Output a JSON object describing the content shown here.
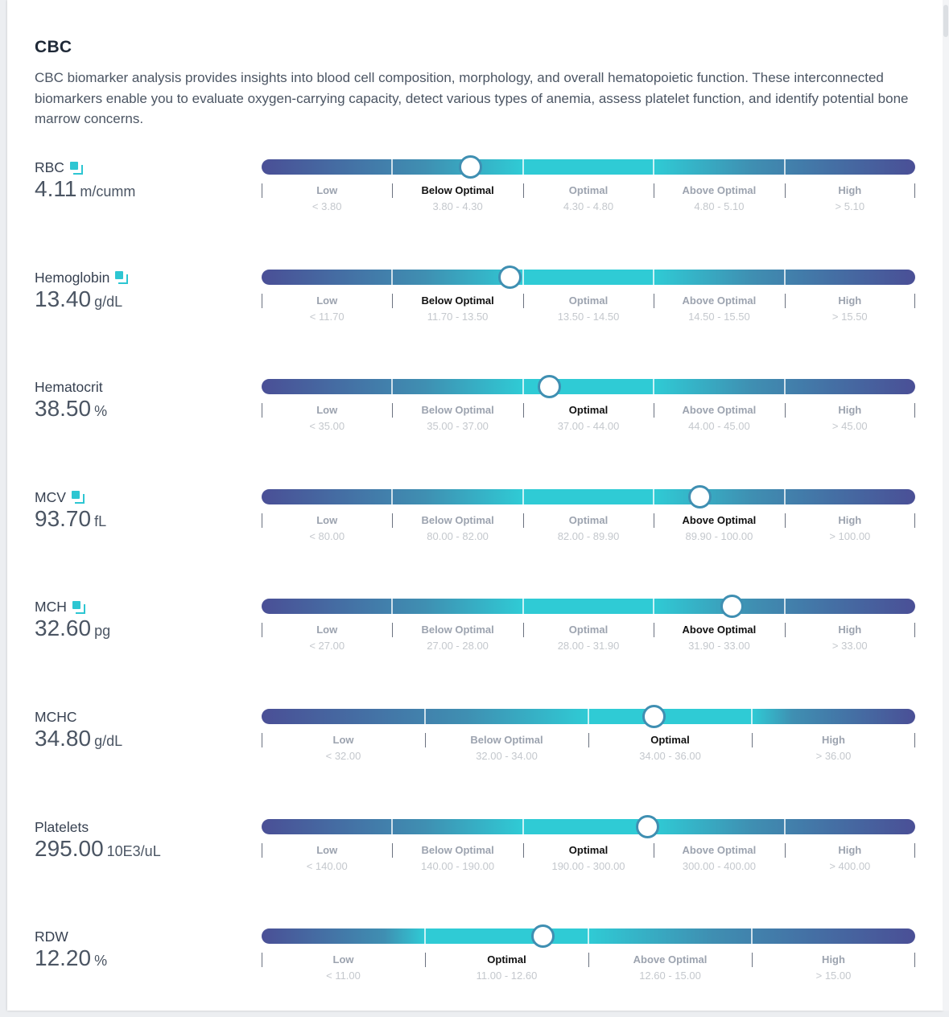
{
  "section": {
    "title": "CBC",
    "description": "CBC biomarker analysis provides insights into blood cell composition, morphology, and overall hematopoietic function. These interconnected biomarkers enable you to evaluate oxygen-carrying capacity, detect various types of anemia, assess platelet function, and identify potential bone marrow concerns."
  },
  "colors": {
    "dark": "#4a4f96",
    "mid": "#3f8fb2",
    "bright": "#2fcbd5",
    "marker_border": "#3f8fb2"
  },
  "biomarkers": [
    {
      "name": "RBC",
      "value": "4.11",
      "unit": "m/cumm",
      "has_icon": true,
      "position": 0.32,
      "active": 1,
      "segments": [
        {
          "label": "Low",
          "range": "< 3.80"
        },
        {
          "label": "Below Optimal",
          "range": "3.80 - 4.30"
        },
        {
          "label": "Optimal",
          "range": "4.30 - 4.80"
        },
        {
          "label": "Above Optimal",
          "range": "4.80 - 5.10"
        },
        {
          "label": "High",
          "range": "> 5.10"
        }
      ]
    },
    {
      "name": "Hemoglobin",
      "value": "13.40",
      "unit": "g/dL",
      "has_icon": true,
      "position": 0.38,
      "active": 1,
      "segments": [
        {
          "label": "Low",
          "range": "< 11.70"
        },
        {
          "label": "Below Optimal",
          "range": "11.70 - 13.50"
        },
        {
          "label": "Optimal",
          "range": "13.50 - 14.50"
        },
        {
          "label": "Above Optimal",
          "range": "14.50 - 15.50"
        },
        {
          "label": "High",
          "range": "> 15.50"
        }
      ]
    },
    {
      "name": "Hematocrit",
      "value": "38.50",
      "unit": "%",
      "has_icon": false,
      "position": 0.44,
      "active": 2,
      "segments": [
        {
          "label": "Low",
          "range": "< 35.00"
        },
        {
          "label": "Below Optimal",
          "range": "35.00 - 37.00"
        },
        {
          "label": "Optimal",
          "range": "37.00 - 44.00"
        },
        {
          "label": "Above Optimal",
          "range": "44.00 - 45.00"
        },
        {
          "label": "High",
          "range": "> 45.00"
        }
      ]
    },
    {
      "name": "MCV",
      "value": "93.70",
      "unit": "fL",
      "has_icon": true,
      "position": 0.67,
      "active": 3,
      "segments": [
        {
          "label": "Low",
          "range": "< 80.00"
        },
        {
          "label": "Below Optimal",
          "range": "80.00 - 82.00"
        },
        {
          "label": "Optimal",
          "range": "82.00 - 89.90"
        },
        {
          "label": "Above Optimal",
          "range": "89.90 - 100.00"
        },
        {
          "label": "High",
          "range": "> 100.00"
        }
      ]
    },
    {
      "name": "MCH",
      "value": "32.60",
      "unit": "pg",
      "has_icon": true,
      "position": 0.72,
      "active": 3,
      "segments": [
        {
          "label": "Low",
          "range": "< 27.00"
        },
        {
          "label": "Below Optimal",
          "range": "27.00 - 28.00"
        },
        {
          "label": "Optimal",
          "range": "28.00 - 31.90"
        },
        {
          "label": "Above Optimal",
          "range": "31.90 - 33.00"
        },
        {
          "label": "High",
          "range": "> 33.00"
        }
      ]
    },
    {
      "name": "MCHC",
      "value": "34.80",
      "unit": "g/dL",
      "has_icon": false,
      "position": 0.6,
      "active": 2,
      "segments": [
        {
          "label": "Low",
          "range": "< 32.00"
        },
        {
          "label": "Below Optimal",
          "range": "32.00 - 34.00"
        },
        {
          "label": "Optimal",
          "range": "34.00 - 36.00"
        },
        {
          "label": "High",
          "range": "> 36.00"
        }
      ]
    },
    {
      "name": "Platelets",
      "value": "295.00",
      "unit": "10E3/uL",
      "has_icon": false,
      "position": 0.59,
      "active": 2,
      "segments": [
        {
          "label": "Low",
          "range": "< 140.00"
        },
        {
          "label": "Below Optimal",
          "range": "140.00 - 190.00"
        },
        {
          "label": "Optimal",
          "range": "190.00 - 300.00"
        },
        {
          "label": "Above Optimal",
          "range": "300.00 - 400.00"
        },
        {
          "label": "High",
          "range": "> 400.00"
        }
      ]
    },
    {
      "name": "RDW",
      "value": "12.20",
      "unit": "%",
      "has_icon": false,
      "position": 0.43,
      "active": 1,
      "segments": [
        {
          "label": "Low",
          "range": "< 11.00"
        },
        {
          "label": "Optimal",
          "range": "11.00 - 12.60"
        },
        {
          "label": "Above Optimal",
          "range": "12.60 - 15.00"
        },
        {
          "label": "High",
          "range": "> 15.00"
        }
      ]
    }
  ]
}
